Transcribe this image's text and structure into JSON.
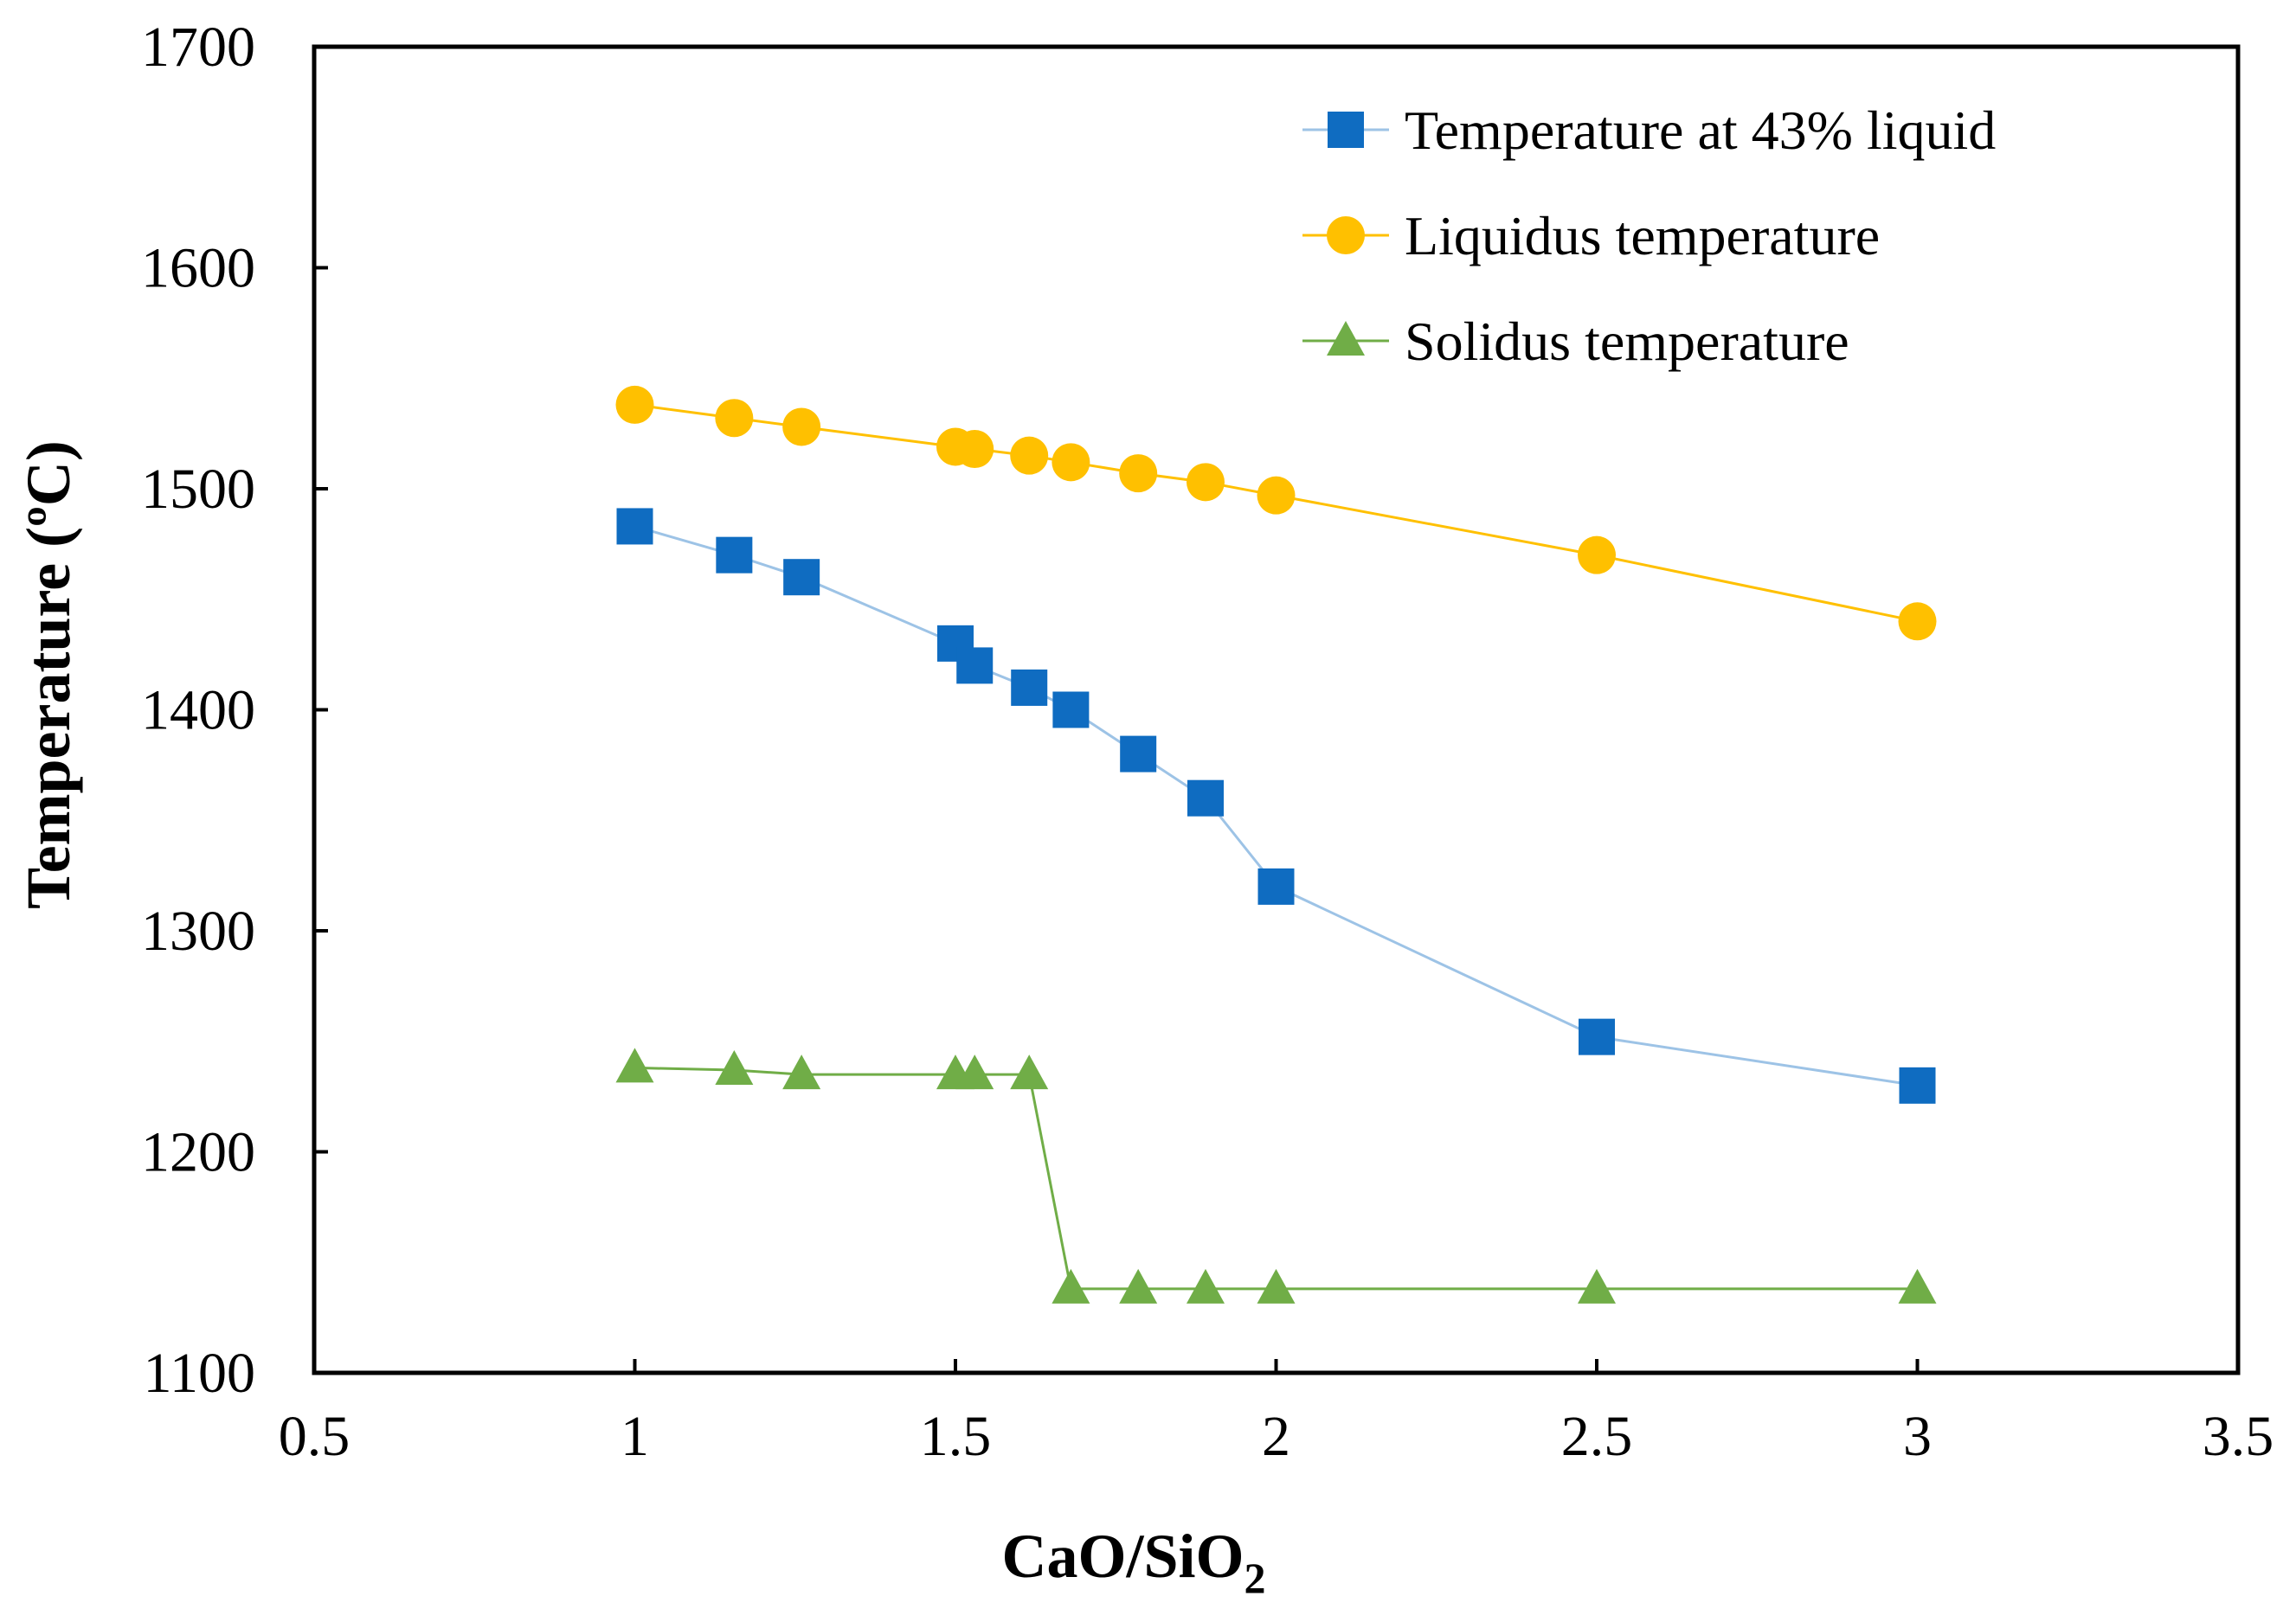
{
  "chart_data": {
    "type": "line",
    "title": "",
    "xlabel": "CaO/SiO",
    "xlabel_subscript": "2",
    "ylabel": "Temperature (ºC)",
    "xlim": [
      0.5,
      3.5
    ],
    "ylim": [
      1100,
      1700
    ],
    "x_ticks": [
      "0.5",
      "1",
      "1.5",
      "2",
      "2.5",
      "3",
      "3.5"
    ],
    "y_ticks": [
      "1100",
      "1200",
      "1300",
      "1400",
      "1500",
      "1600",
      "1700"
    ],
    "grid": false,
    "legend_position": "top-right",
    "series": [
      {
        "name": "Temperature at 43% liquid",
        "marker": "square",
        "color": "#0F6CC1",
        "line_color": "#9DC3E6",
        "x": [
          1.0,
          1.155,
          1.26,
          1.5,
          1.53,
          1.615,
          1.68,
          1.785,
          1.89,
          2.0,
          2.5,
          3.0
        ],
        "y": [
          1483,
          1470,
          1460,
          1430,
          1420,
          1410,
          1400,
          1380,
          1360,
          1320,
          1252,
          1230
        ]
      },
      {
        "name": "Liquidus temperature",
        "marker": "circle",
        "color": "#FFC000",
        "line_color": "#FFC000",
        "x": [
          1.0,
          1.155,
          1.26,
          1.5,
          1.53,
          1.615,
          1.68,
          1.785,
          1.89,
          2.0,
          2.5,
          3.0
        ],
        "y": [
          1538,
          1532,
          1528,
          1519,
          1518,
          1515,
          1512,
          1507,
          1503,
          1497,
          1470,
          1440
        ]
      },
      {
        "name": "Solidus temperature",
        "marker": "triangle",
        "color": "#70AD47",
        "line_color": "#70AD47",
        "x": [
          1.0,
          1.155,
          1.26,
          1.5,
          1.53,
          1.615,
          1.68,
          1.785,
          1.89,
          2.0,
          2.5,
          3.0
        ],
        "y": [
          1238,
          1237,
          1235,
          1235,
          1235,
          1235,
          1138,
          1138,
          1138,
          1138,
          1138,
          1138
        ]
      }
    ]
  }
}
